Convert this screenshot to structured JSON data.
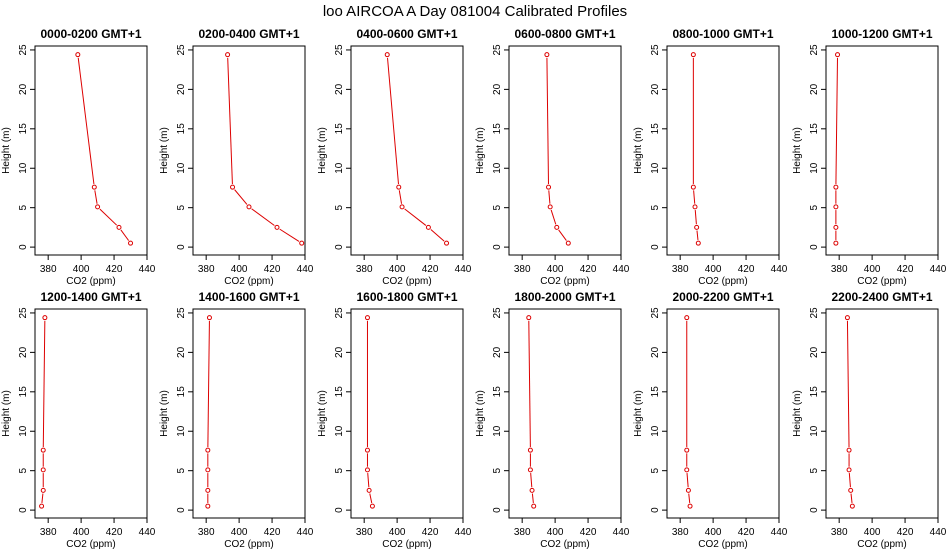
{
  "page": {
    "title": "loo AIRCOA A  Day 081004  Calibrated Profiles"
  },
  "colors": {
    "series": "#dd0000",
    "axis": "#000000",
    "background": "#ffffff"
  },
  "chart_data": {
    "type": "line",
    "layout": "2 rows x 6 panels",
    "grid": false,
    "xlabel": "CO2 (ppm)",
    "ylabel": "Height (m)",
    "xlim": [
      372,
      440
    ],
    "ylim": [
      -1,
      25.5
    ],
    "xticks": [
      380,
      400,
      420,
      440
    ],
    "yticks": [
      0,
      5,
      10,
      15,
      20,
      25
    ],
    "heights": [
      24.4,
      7.6,
      5.1,
      2.5,
      0.5
    ],
    "panels": [
      {
        "title": "0000-0200 GMT+1",
        "values": [
          398,
          408,
          410,
          423,
          430
        ]
      },
      {
        "title": "0200-0400 GMT+1",
        "values": [
          393,
          396,
          406,
          423,
          438
        ]
      },
      {
        "title": "0400-0600 GMT+1",
        "values": [
          394,
          401,
          403,
          419,
          430
        ]
      },
      {
        "title": "0600-0800 GMT+1",
        "values": [
          395,
          396,
          397,
          401,
          408
        ]
      },
      {
        "title": "0800-1000 GMT+1",
        "values": [
          388,
          388,
          389,
          390,
          391
        ]
      },
      {
        "title": "1000-1200 GMT+1",
        "values": [
          379,
          378,
          378,
          378,
          378
        ]
      },
      {
        "title": "1200-1400 GMT+1",
        "values": [
          378,
          377,
          377,
          377,
          376
        ]
      },
      {
        "title": "1400-1600 GMT+1",
        "values": [
          382,
          381,
          381,
          381,
          381
        ]
      },
      {
        "title": "1600-1800 GMT+1",
        "values": [
          382,
          382,
          382,
          383,
          385
        ]
      },
      {
        "title": "1800-2000 GMT+1",
        "values": [
          384,
          385,
          385,
          386,
          387
        ]
      },
      {
        "title": "2000-2200 GMT+1",
        "values": [
          384,
          384,
          384,
          385,
          386
        ]
      },
      {
        "title": "2200-2400 GMT+1",
        "values": [
          385,
          386,
          386,
          387,
          388
        ]
      }
    ]
  }
}
